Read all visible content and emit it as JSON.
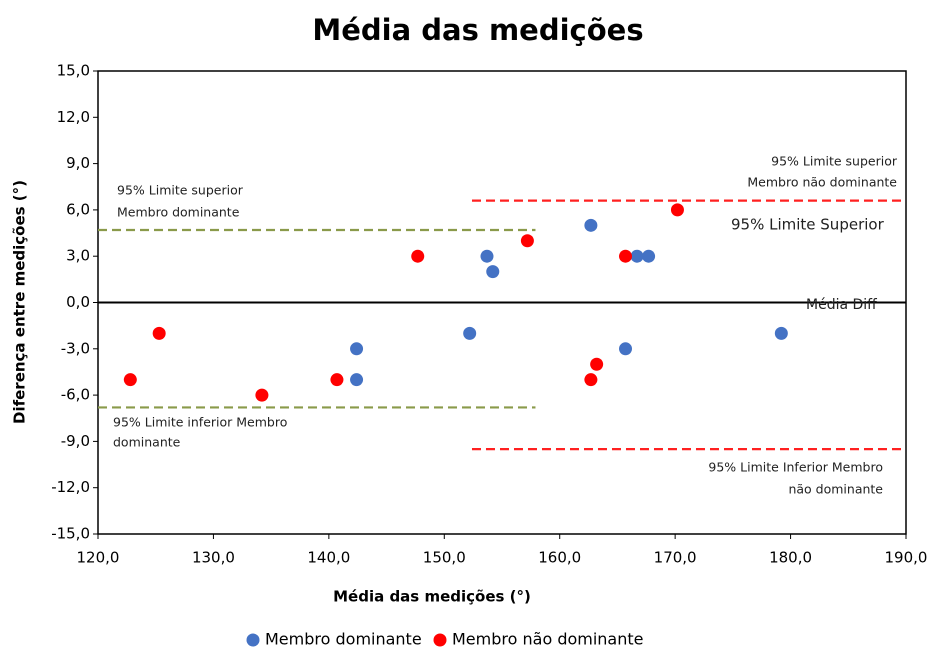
{
  "chart_data": {
    "type": "scatter",
    "title": "Média das medições",
    "x_label": "Média das medições (°)",
    "y_label": "Diferença  entre medições (°)",
    "xlim": [
      120,
      190
    ],
    "ylim": [
      -15,
      15
    ],
    "xticks": [
      {
        "value": 120,
        "label": "120,0"
      },
      {
        "value": 130,
        "label": "130,0"
      },
      {
        "value": 140,
        "label": "140,0"
      },
      {
        "value": 150,
        "label": "150,0"
      },
      {
        "value": 160,
        "label": "160,0"
      },
      {
        "value": 170,
        "label": "170,0"
      },
      {
        "value": 180,
        "label": "180,0"
      },
      {
        "value": 190,
        "label": "190,0"
      }
    ],
    "yticks": [
      {
        "value": -15,
        "label": "-15,0"
      },
      {
        "value": -12,
        "label": "-12,0"
      },
      {
        "value": -9,
        "label": "-9,0"
      },
      {
        "value": -6,
        "label": "-6,0"
      },
      {
        "value": -3,
        "label": "-3,0"
      },
      {
        "value": 0,
        "label": "0,0"
      },
      {
        "value": 3,
        "label": "3,0"
      },
      {
        "value": 6,
        "label": "6,0"
      },
      {
        "value": 9,
        "label": "9,0"
      },
      {
        "value": 12,
        "label": "12,0"
      },
      {
        "value": 15,
        "label": "15,0"
      }
    ],
    "series": [
      {
        "name": "Membro dominante",
        "color": "#4472c4",
        "x": [
          142.4,
          142.4,
          152.2,
          153.7,
          154.2,
          162.7,
          165.7,
          166.7,
          167.7,
          179.2
        ],
        "values": [
          -3,
          -5,
          -2,
          3,
          2,
          5,
          -3,
          3,
          3,
          -2
        ]
      },
      {
        "name": "Membro não dominante",
        "color": "#ff0000",
        "x": [
          122.8,
          125.3,
          134.2,
          140.7,
          147.7,
          157.2,
          162.7,
          163.2,
          165.7,
          170.2
        ],
        "values": [
          -5,
          -2,
          -6,
          -5,
          3,
          4,
          -5,
          -4,
          3,
          6
        ]
      }
    ],
    "reference_lines": [
      {
        "y": 0,
        "x": [
          120,
          190
        ],
        "color": "#000000",
        "style": "solid"
      },
      {
        "y": 4.7,
        "x": [
          120,
          157.9
        ],
        "color": "#8a9a4a",
        "style": "dashed"
      },
      {
        "y": -6.8,
        "x": [
          120,
          157.9
        ],
        "color": "#8a9a4a",
        "style": "dashed"
      },
      {
        "y": 6.6,
        "x": [
          152.4,
          190
        ],
        "color": "#ff2020",
        "style": "dashed"
      },
      {
        "y": -9.5,
        "x": [
          152.4,
          190
        ],
        "color": "#ff2020",
        "style": "dashed"
      }
    ],
    "annotations": [
      {
        "lines": [
          "95% Limite superior",
          "Membro  dominante"
        ]
      },
      {
        "lines": [
          "95% Limite inferior Membro",
          "dominante"
        ]
      },
      {
        "lines": [
          "95% Limite superior",
          "Membro não dominante"
        ]
      },
      {
        "lines": [
          "95% Limite Superior"
        ]
      },
      {
        "lines": [
          "Média Diff"
        ]
      },
      {
        "lines": [
          "95% Limite Inferior Membro",
          "não dominante"
        ]
      }
    ],
    "legend": "bottom"
  }
}
